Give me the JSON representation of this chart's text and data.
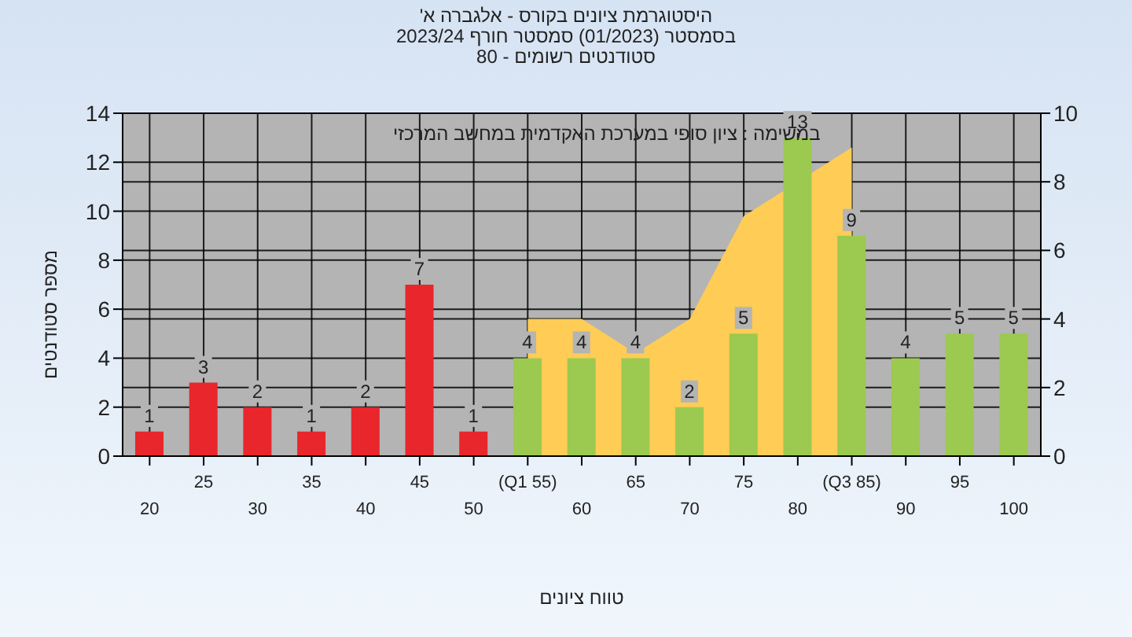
{
  "chart_data": {
    "type": "bar",
    "title": "היסטוגרמת ציונים בקורס - אלגברה א'",
    "subtitle": "בסמסטר (01/2023) סמסטר חורף 2023/24\nסטודנטים רשומים - 80",
    "xlabel": "טווח ציונים",
    "ylabel": "מספר סטודנטים",
    "annotations": [
      "במשימה : ציון סופי במערכת האקדמית במחשב המרכזי"
    ],
    "categories": [
      "20",
      "25",
      "30",
      "35",
      "40",
      "45",
      "50",
      "(Q1 55)",
      "60",
      "65",
      "70",
      "75",
      "80",
      "(Q3 85)",
      "90",
      "95",
      "100"
    ],
    "series": [
      {
        "type": "area",
        "axis": "y2",
        "color": "#ffcc55",
        "values": [
          null,
          null,
          null,
          null,
          null,
          null,
          null,
          4,
          4,
          3,
          4,
          7,
          null,
          9,
          null,
          null,
          null
        ]
      },
      {
        "value_labels": [
          "1",
          "3",
          "2",
          "1",
          "2",
          "7",
          "1",
          "4",
          "4",
          "4",
          "2",
          "5",
          "13",
          "9",
          "4",
          "5",
          "5"
        ],
        "colors": [
          "#e8262b",
          "#e8262b",
          "#e8262b",
          "#e8262b",
          "#e8262b",
          "#e8262b",
          "#e8262b",
          "#9cc94f",
          "#9cc94f",
          "#9cc94f",
          "#9cc94f",
          "#9cc94f",
          "#9cc94f",
          "#9cc94f",
          "#9cc94f",
          "#9cc94f",
          "#9cc94f"
        ],
        "values": [
          1,
          3,
          2,
          1,
          2,
          7,
          1,
          4,
          4,
          4,
          2,
          5,
          13,
          9,
          4,
          5,
          5
        ]
      }
    ],
    "ylim": [
      0,
      14
    ],
    "yticks": [
      0,
      2,
      4,
      6,
      8,
      10,
      12,
      14
    ],
    "y2lim": [
      0,
      10
    ],
    "y2ticks": [
      0,
      2,
      4,
      6,
      8,
      10
    ],
    "grid": true,
    "legend": false
  }
}
